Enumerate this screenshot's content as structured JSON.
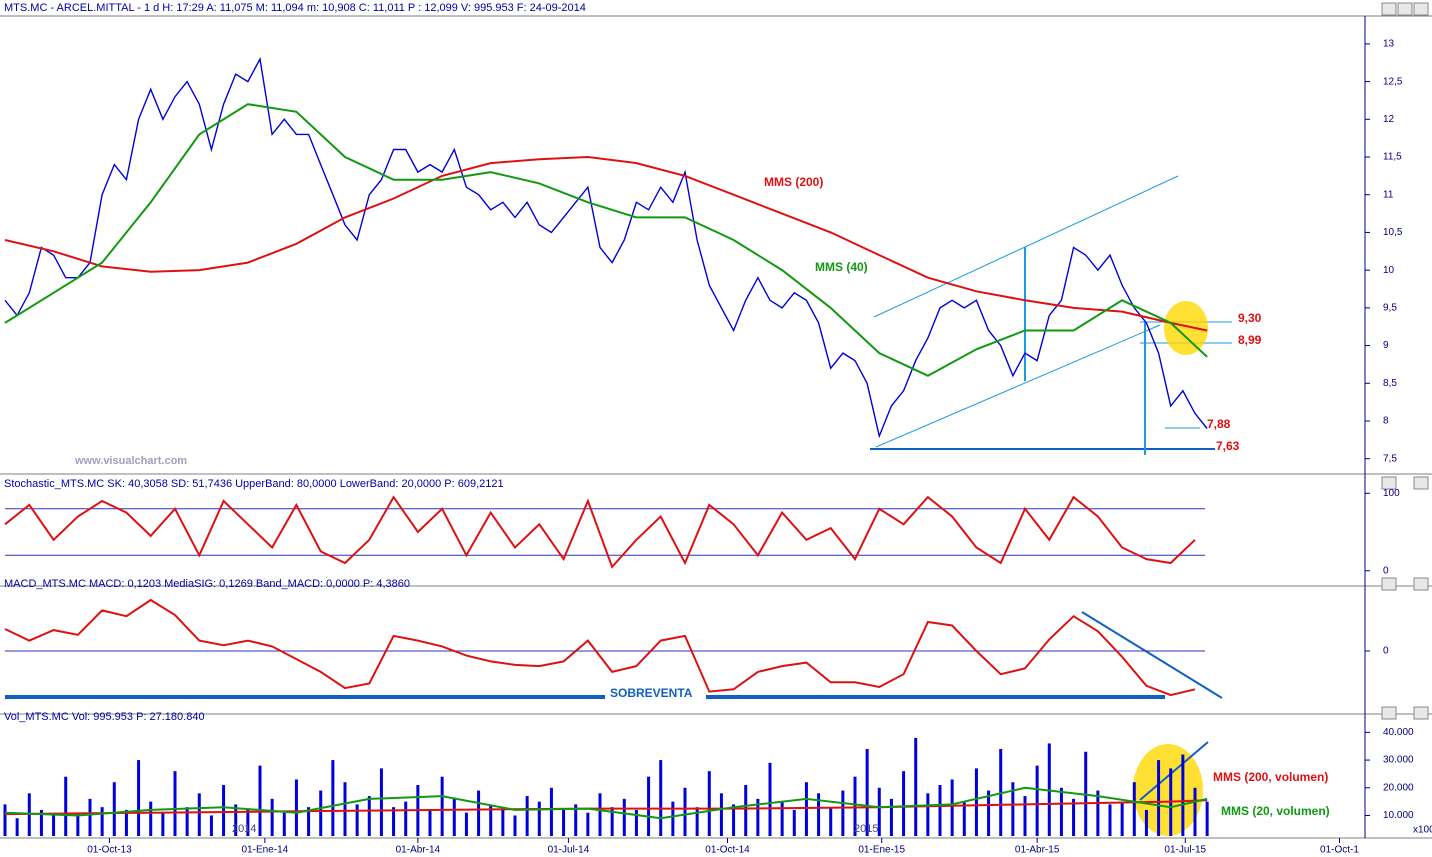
{
  "chart_data": [
    {
      "type": "line",
      "title": "MTS.MC - ARCEL.MITTAL - 1 d H: 17:29 A: 11,075 M: 11,094 m: 10,908 C: 11,011 P : 12,099 V: 995.953 F: 24-09-2014",
      "watermark": "www.visualchart.com",
      "annotations": [
        "MMS (200)",
        "MMS (40)",
        "9,30",
        "8,99",
        "7,88",
        "7,63"
      ],
      "xlim": [
        0,
        112
      ],
      "ylim": [
        7.35,
        13.37
      ],
      "yticks": [
        {
          "value": 7.5,
          "label": "7,5"
        },
        8,
        {
          "value": 8.5,
          "label": "8,5"
        },
        9,
        {
          "value": 9.5,
          "label": "9,5"
        },
        10,
        {
          "value": 10.5,
          "label": "10,5"
        },
        11,
        {
          "value": 11.5,
          "label": "11,5"
        },
        12,
        {
          "value": 12.5,
          "label": "12,5"
        },
        13
      ],
      "x": [
        0,
        1,
        2,
        3,
        4,
        5,
        6,
        7,
        8,
        9,
        10,
        11,
        12,
        13,
        14,
        15,
        16,
        17,
        18,
        19,
        20,
        21,
        22,
        23,
        24,
        25,
        26,
        27,
        28,
        29,
        30,
        31,
        32,
        33,
        34,
        35,
        36,
        37,
        38,
        39,
        40,
        41,
        42,
        43,
        44,
        45,
        46,
        47,
        48,
        49,
        50,
        51,
        52,
        53,
        54,
        55,
        56,
        57,
        58,
        59,
        60,
        61,
        62,
        63,
        64,
        65,
        66,
        67,
        68,
        69,
        70,
        71,
        72,
        73,
        74,
        75,
        76,
        77,
        78,
        79,
        80,
        81,
        82,
        83,
        84,
        85,
        86,
        87,
        88,
        89,
        90,
        91,
        92,
        93,
        94,
        95,
        96,
        97,
        98,
        99
      ],
      "series": [
        {
          "color": "#0000dd",
          "values": [
            9.6,
            9.4,
            9.7,
            10.3,
            10.2,
            9.9,
            9.9,
            10.1,
            11.0,
            11.4,
            11.2,
            12.0,
            12.4,
            12.0,
            12.3,
            12.5,
            12.2,
            11.6,
            12.2,
            12.6,
            12.5,
            12.8,
            11.8,
            12.0,
            11.8,
            11.8,
            11.4,
            11.0,
            10.6,
            10.4,
            11.0,
            11.2,
            11.6,
            11.6,
            11.3,
            11.4,
            11.3,
            11.6,
            11.1,
            11.0,
            10.8,
            10.9,
            10.7,
            10.9,
            10.6,
            10.5,
            10.7,
            10.9,
            11.1,
            10.3,
            10.1,
            10.4,
            10.9,
            10.8,
            11.1,
            10.9,
            11.3,
            10.4,
            9.8,
            9.5,
            9.2,
            9.6,
            9.9,
            9.6,
            9.5,
            9.7,
            9.6,
            9.3,
            8.7,
            8.9,
            8.8,
            8.5,
            7.8,
            8.2,
            8.4,
            8.8,
            9.1,
            9.5,
            9.6,
            9.5,
            9.6,
            9.2,
            9.0,
            8.6,
            8.9,
            8.8,
            9.4,
            9.6,
            10.3,
            10.2,
            10.0,
            10.2,
            9.8,
            9.5,
            9.3,
            8.9,
            8.2,
            8.4,
            8.1,
            7.9
          ]
        },
        {
          "color": "#dd1111",
          "x": [
            0,
            4,
            8,
            12,
            16,
            20,
            24,
            28,
            32,
            36,
            40,
            44,
            48,
            52,
            56,
            60,
            64,
            68,
            72,
            76,
            80,
            84,
            88,
            92,
            96,
            99
          ],
          "values": [
            10.4,
            10.25,
            10.05,
            9.98,
            10.0,
            10.1,
            10.35,
            10.7,
            10.95,
            11.25,
            11.42,
            11.47,
            11.5,
            11.42,
            11.25,
            11.0,
            10.75,
            10.5,
            10.2,
            9.9,
            9.72,
            9.6,
            9.5,
            9.45,
            9.3,
            9.2
          ]
        },
        {
          "color": "#119911",
          "x": [
            0,
            4,
            8,
            12,
            16,
            20,
            24,
            28,
            32,
            36,
            40,
            44,
            48,
            52,
            56,
            60,
            64,
            68,
            72,
            76,
            80,
            84,
            88,
            92,
            96,
            99
          ],
          "values": [
            9.3,
            9.7,
            10.1,
            10.9,
            11.8,
            12.2,
            12.1,
            11.5,
            11.2,
            11.2,
            11.3,
            11.15,
            10.9,
            10.7,
            10.7,
            10.4,
            10.0,
            9.5,
            8.9,
            8.6,
            8.95,
            9.2,
            9.2,
            9.6,
            9.3,
            8.85
          ]
        }
      ]
    },
    {
      "type": "line",
      "title": "Stochastic_MTS.MC SK: 40,3058 SD: 51,7436 UpperBand: 80,0000 LowerBand: 20,0000 P: 609,2121",
      "xlim": [
        0,
        112
      ],
      "ylim": [
        -14.5,
        119.7
      ],
      "yticks": [
        0,
        100
      ],
      "bands": [
        80,
        20
      ],
      "x": [
        0,
        2,
        4,
        6,
        8,
        10,
        12,
        14,
        16,
        18,
        20,
        22,
        24,
        26,
        28,
        30,
        32,
        34,
        36,
        38,
        40,
        42,
        44,
        46,
        48,
        50,
        52,
        54,
        56,
        58,
        60,
        62,
        64,
        66,
        68,
        70,
        72,
        74,
        76,
        78,
        80,
        82,
        84,
        86,
        88,
        90,
        92,
        94,
        96,
        98
      ],
      "series": [
        {
          "color": "#dd1111",
          "values": [
            60,
            85,
            40,
            70,
            90,
            75,
            45,
            80,
            20,
            90,
            60,
            30,
            85,
            25,
            10,
            40,
            95,
            50,
            80,
            20,
            75,
            30,
            60,
            15,
            90,
            5,
            40,
            70,
            10,
            85,
            60,
            20,
            75,
            40,
            55,
            15,
            80,
            60,
            95,
            70,
            30,
            10,
            80,
            40,
            95,
            70,
            30,
            15,
            10,
            40
          ]
        }
      ]
    },
    {
      "type": "line",
      "title": "MACD_MTS.MC MACD: 0,1203 MediaSIG: 0,1269 Band_MACD: 0,0000 P: 4,3860",
      "annotations": [
        "SOBREVENTA"
      ],
      "xlim": [
        0,
        112
      ],
      "ylim": [
        -0.526,
        0.526
      ],
      "yticks": [
        0
      ],
      "x": [
        0,
        2,
        4,
        6,
        8,
        10,
        12,
        14,
        16,
        18,
        20,
        22,
        24,
        26,
        28,
        30,
        32,
        34,
        36,
        38,
        40,
        42,
        44,
        46,
        48,
        50,
        52,
        54,
        56,
        58,
        60,
        62,
        64,
        66,
        68,
        70,
        72,
        74,
        76,
        78,
        80,
        82,
        84,
        86,
        88,
        90,
        92,
        94,
        96,
        98
      ],
      "series": [
        {
          "color": "#dd1111",
          "values": [
            0.19,
            0.09,
            0.18,
            0.14,
            0.35,
            0.3,
            0.44,
            0.31,
            0.09,
            0.05,
            0.09,
            0.04,
            -0.07,
            -0.18,
            -0.32,
            -0.28,
            0.13,
            0.09,
            0.04,
            -0.04,
            -0.09,
            -0.12,
            -0.13,
            -0.09,
            0.09,
            -0.18,
            -0.13,
            0.09,
            0.13,
            -0.35,
            -0.33,
            -0.18,
            -0.13,
            -0.1,
            -0.27,
            -0.27,
            -0.31,
            -0.2,
            0.25,
            0.22,
            0.0,
            -0.2,
            -0.15,
            0.1,
            0.3,
            0.17,
            -0.05,
            -0.3,
            -0.38,
            -0.33
          ]
        }
      ]
    },
    {
      "type": "bar",
      "title": "Vol_MTS.MC Vol: 995.953 P: 27.180.840",
      "annotations": [
        "MMS (200, volumen)",
        "MMS (20, volumen)",
        "2014",
        "2015",
        "x100"
      ],
      "xlim": [
        0,
        112
      ],
      "ylim": [
        2593,
        45185
      ],
      "yticks": [
        {
          "value": 10000,
          "label": "10.000"
        },
        {
          "value": 20000,
          "label": "20.000"
        },
        {
          "value": 30000,
          "label": "30.000"
        },
        {
          "value": 40000,
          "label": "40.000"
        }
      ],
      "xticks": [
        {
          "value": 8.6,
          "label": "01-Oct-13"
        },
        {
          "value": 21.4,
          "label": "01-Ene-14"
        },
        {
          "value": 34,
          "label": "01-Abr-14"
        },
        {
          "value": 46.4,
          "label": "01-Jul-14"
        },
        {
          "value": 59.5,
          "label": "01-Oct-14"
        },
        {
          "value": 72.2,
          "label": "01-Ene-15"
        },
        {
          "value": 85,
          "label": "01-Abr-15"
        },
        {
          "value": 97.2,
          "label": "01-Jul-15"
        },
        {
          "value": 109.9,
          "label": "01-Oct-1"
        }
      ],
      "x": [
        0,
        1,
        2,
        3,
        4,
        5,
        6,
        7,
        8,
        9,
        10,
        11,
        12,
        13,
        14,
        15,
        16,
        17,
        18,
        19,
        20,
        21,
        22,
        23,
        24,
        25,
        26,
        27,
        28,
        29,
        30,
        31,
        32,
        33,
        34,
        35,
        36,
        37,
        38,
        39,
        40,
        41,
        42,
        43,
        44,
        45,
        46,
        47,
        48,
        49,
        50,
        51,
        52,
        53,
        54,
        55,
        56,
        57,
        58,
        59,
        60,
        61,
        62,
        63,
        64,
        65,
        66,
        67,
        68,
        69,
        70,
        71,
        72,
        73,
        74,
        75,
        76,
        77,
        78,
        79,
        80,
        81,
        82,
        83,
        84,
        85,
        86,
        87,
        88,
        89,
        90,
        91,
        92,
        93,
        94,
        95,
        96,
        97,
        98,
        99
      ],
      "color": "#0000dd",
      "values": [
        14000,
        9000,
        18000,
        12000,
        10000,
        24000,
        11000,
        16000,
        13000,
        22000,
        12000,
        30000,
        15000,
        11000,
        26000,
        13000,
        18000,
        10000,
        21000,
        14000,
        12000,
        28000,
        16000,
        11000,
        23000,
        13000,
        19000,
        30000,
        22000,
        14000,
        17000,
        27000,
        13000,
        15000,
        21000,
        12000,
        24000,
        16000,
        11000,
        19000,
        14000,
        13000,
        10000,
        17000,
        15000,
        20000,
        12000,
        14000,
        11000,
        18000,
        13000,
        16000,
        12000,
        24000,
        30000,
        15000,
        20000,
        13000,
        26000,
        18000,
        14000,
        21000,
        16000,
        29000,
        15000,
        12000,
        22000,
        18000,
        13000,
        19000,
        24000,
        34000,
        20000,
        16000,
        26000,
        38000,
        18000,
        21000,
        23000,
        15000,
        27000,
        19000,
        34000,
        22000,
        17000,
        28000,
        36000,
        20000,
        16000,
        33000,
        19000,
        14000,
        15000,
        22000,
        12000,
        30000,
        27000,
        32000,
        20000,
        15000
      ],
      "series": [
        {
          "color": "#dd1111",
          "x": [
            0,
            12,
            24,
            36,
            48,
            60,
            72,
            84,
            96,
            99
          ],
          "values": [
            10500,
            11000,
            11500,
            12000,
            12500,
            12500,
            13000,
            14000,
            15000,
            15500
          ]
        },
        {
          "color": "#119911",
          "x": [
            0,
            6,
            12,
            18,
            24,
            30,
            36,
            42,
            48,
            54,
            60,
            66,
            72,
            78,
            84,
            90,
            96,
            99
          ],
          "values": [
            11000,
            10000,
            12000,
            13000,
            11000,
            16000,
            17000,
            12000,
            12500,
            9000,
            13000,
            16000,
            13000,
            14000,
            20000,
            17000,
            13000,
            16000
          ]
        }
      ]
    }
  ]
}
